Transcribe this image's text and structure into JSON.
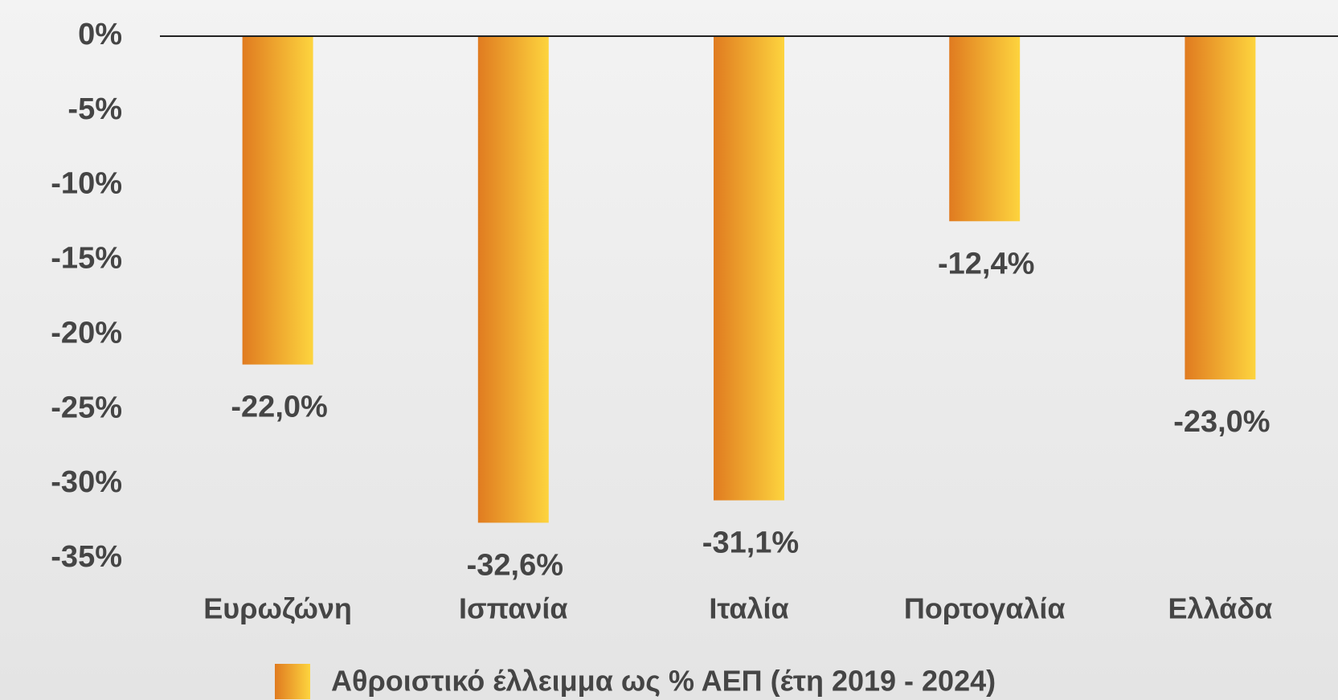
{
  "chart_data": {
    "type": "bar",
    "categories": [
      "Ευρωζώνη",
      "Ισπανία",
      "Ιταλία",
      "Πορτογαλία",
      "Ελλάδα"
    ],
    "series": [
      {
        "name": "Αθροιστικό έλλειμμα ως % ΑΕΠ (έτη 2019 - 2024)",
        "gradient": [
          "#e07b20",
          "#fdd43e"
        ],
        "values": [
          -22.0,
          -32.6,
          -31.1,
          -12.4,
          -23.0
        ],
        "value_labels": [
          "-22,0%",
          "-32,6%",
          "-31,1%",
          "-12,4%",
          "-23,0%"
        ]
      }
    ],
    "ylim": [
      -35,
      0
    ],
    "yticks": [
      {
        "value": 0,
        "label": "0%"
      },
      {
        "value": -5,
        "label": "-5%"
      },
      {
        "value": -10,
        "label": "-10%"
      },
      {
        "value": -15,
        "label": "-15%"
      },
      {
        "value": -20,
        "label": "-20%"
      },
      {
        "value": -25,
        "label": "-25%"
      },
      {
        "value": -30,
        "label": "-30%"
      },
      {
        "value": -35,
        "label": "-35%"
      }
    ],
    "zero_line": true
  }
}
